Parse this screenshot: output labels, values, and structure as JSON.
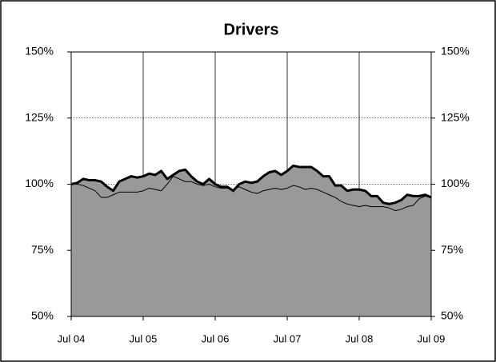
{
  "chart_data": {
    "type": "area-line",
    "title": "Drivers",
    "categories": [
      "Jul 04",
      null,
      null,
      null,
      null,
      null,
      null,
      null,
      null,
      null,
      null,
      null,
      "Jul 05",
      null,
      null,
      null,
      null,
      null,
      null,
      null,
      null,
      null,
      null,
      null,
      "Jul 06",
      null,
      null,
      null,
      null,
      null,
      null,
      null,
      null,
      null,
      null,
      null,
      "Jul 07",
      null,
      null,
      null,
      null,
      null,
      null,
      null,
      null,
      null,
      null,
      null,
      "Jul 08",
      null,
      null,
      null,
      null,
      null,
      null,
      null,
      null,
      null,
      null,
      null,
      "Jul 09"
    ],
    "series": [
      {
        "color": "#000000",
        "fill": "#999999",
        "values": [
          100,
          100.5,
          102,
          101.5,
          101.5,
          101,
          99,
          97.5,
          101,
          102,
          103,
          102.5,
          103,
          104,
          103.5,
          105,
          102,
          103.5,
          105,
          105.5,
          103,
          101,
          100,
          102,
          100,
          99,
          99,
          97.5,
          100,
          101,
          100.5,
          101,
          103,
          104.5,
          105,
          103.5,
          105,
          107,
          106.5,
          106.5,
          106.5,
          105,
          103,
          103,
          99.5,
          99.5,
          97.5,
          98,
          98,
          97.5,
          95.5,
          95.5,
          93,
          92.5,
          93,
          94,
          96,
          95.5,
          95.5,
          96,
          95
        ]
      },
      {
        "color": "#000000",
        "values": [
          100,
          100,
          99.5,
          98.5,
          97.5,
          95,
          95,
          96,
          97,
          97,
          97,
          97,
          97.5,
          98.5,
          98,
          97.5,
          100,
          103,
          102,
          101,
          101,
          100,
          99.5,
          100,
          99,
          98.5,
          98.5,
          98,
          99,
          98,
          97,
          96.5,
          97.5,
          98,
          98.5,
          98,
          98.5,
          99.5,
          99,
          98,
          98.5,
          98,
          97,
          96,
          95,
          93.5,
          92.5,
          92,
          91.5,
          92,
          91.5,
          91.5,
          91.5,
          91,
          90,
          90.5,
          91.5,
          92,
          94.5,
          95.5,
          95
        ]
      }
    ],
    "ylim": [
      50,
      150
    ],
    "yticks": [
      {
        "value": 50,
        "label": "50%"
      },
      {
        "value": 75,
        "label": "75%"
      },
      {
        "value": 100,
        "label": "100%"
      },
      {
        "value": 125,
        "label": "125%"
      },
      {
        "value": 150,
        "label": "150%"
      }
    ],
    "y2lim": [
      50,
      150
    ],
    "y2ticks": [
      {
        "value": 50,
        "label": "50%"
      },
      {
        "value": 75,
        "label": "75%"
      },
      {
        "value": 100,
        "label": "100%"
      },
      {
        "value": 125,
        "label": "125%"
      },
      {
        "value": 150,
        "label": "150%"
      }
    ],
    "grid": true
  }
}
